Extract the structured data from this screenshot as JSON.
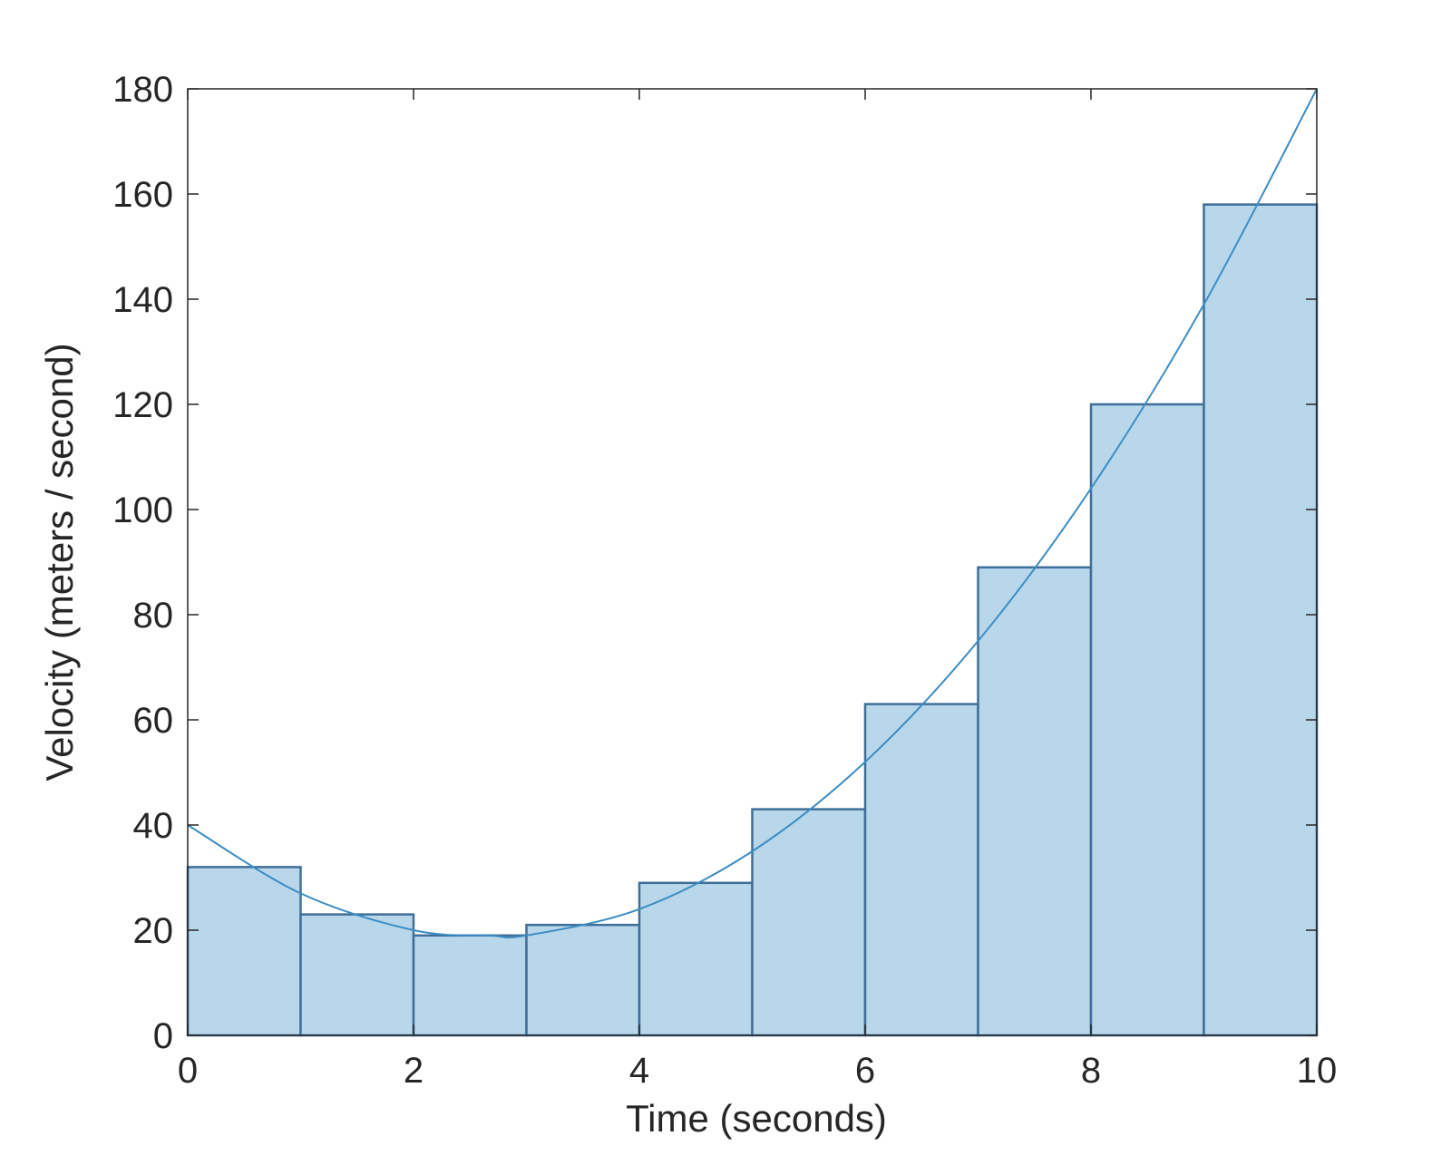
{
  "chart_data": {
    "type": "bar",
    "xlabel": "Time (seconds)",
    "ylabel": "Velocity (meters / second)",
    "xlim": [
      0,
      10
    ],
    "ylim": [
      0,
      180
    ],
    "xticks": [
      0,
      2,
      4,
      6,
      8,
      10
    ],
    "yticks": [
      0,
      20,
      40,
      60,
      80,
      100,
      120,
      140,
      160,
      180
    ],
    "grid": false,
    "bars": [
      {
        "x0": 0,
        "x1": 1,
        "value": 32
      },
      {
        "x0": 1,
        "x1": 2,
        "value": 23
      },
      {
        "x0": 2,
        "x1": 3,
        "value": 19
      },
      {
        "x0": 3,
        "x1": 4,
        "value": 21
      },
      {
        "x0": 4,
        "x1": 5,
        "value": 29
      },
      {
        "x0": 5,
        "x1": 6,
        "value": 43
      },
      {
        "x0": 6,
        "x1": 7,
        "value": 63
      },
      {
        "x0": 7,
        "x1": 8,
        "value": 89
      },
      {
        "x0": 8,
        "x1": 9,
        "value": 120
      },
      {
        "x0": 9,
        "x1": 10,
        "value": 158
      }
    ],
    "curve": {
      "x": [
        0,
        1,
        2,
        2.67,
        3,
        4,
        5,
        6,
        7,
        8,
        9,
        10
      ],
      "y": [
        40,
        27,
        20,
        19,
        19,
        24,
        35,
        52,
        75,
        104,
        139,
        180
      ]
    },
    "colors": {
      "bar_fill": "#b9d7eb",
      "bar_edge": "#3f6f98",
      "curve": "#3c8dc4",
      "axis": "#262626"
    }
  }
}
